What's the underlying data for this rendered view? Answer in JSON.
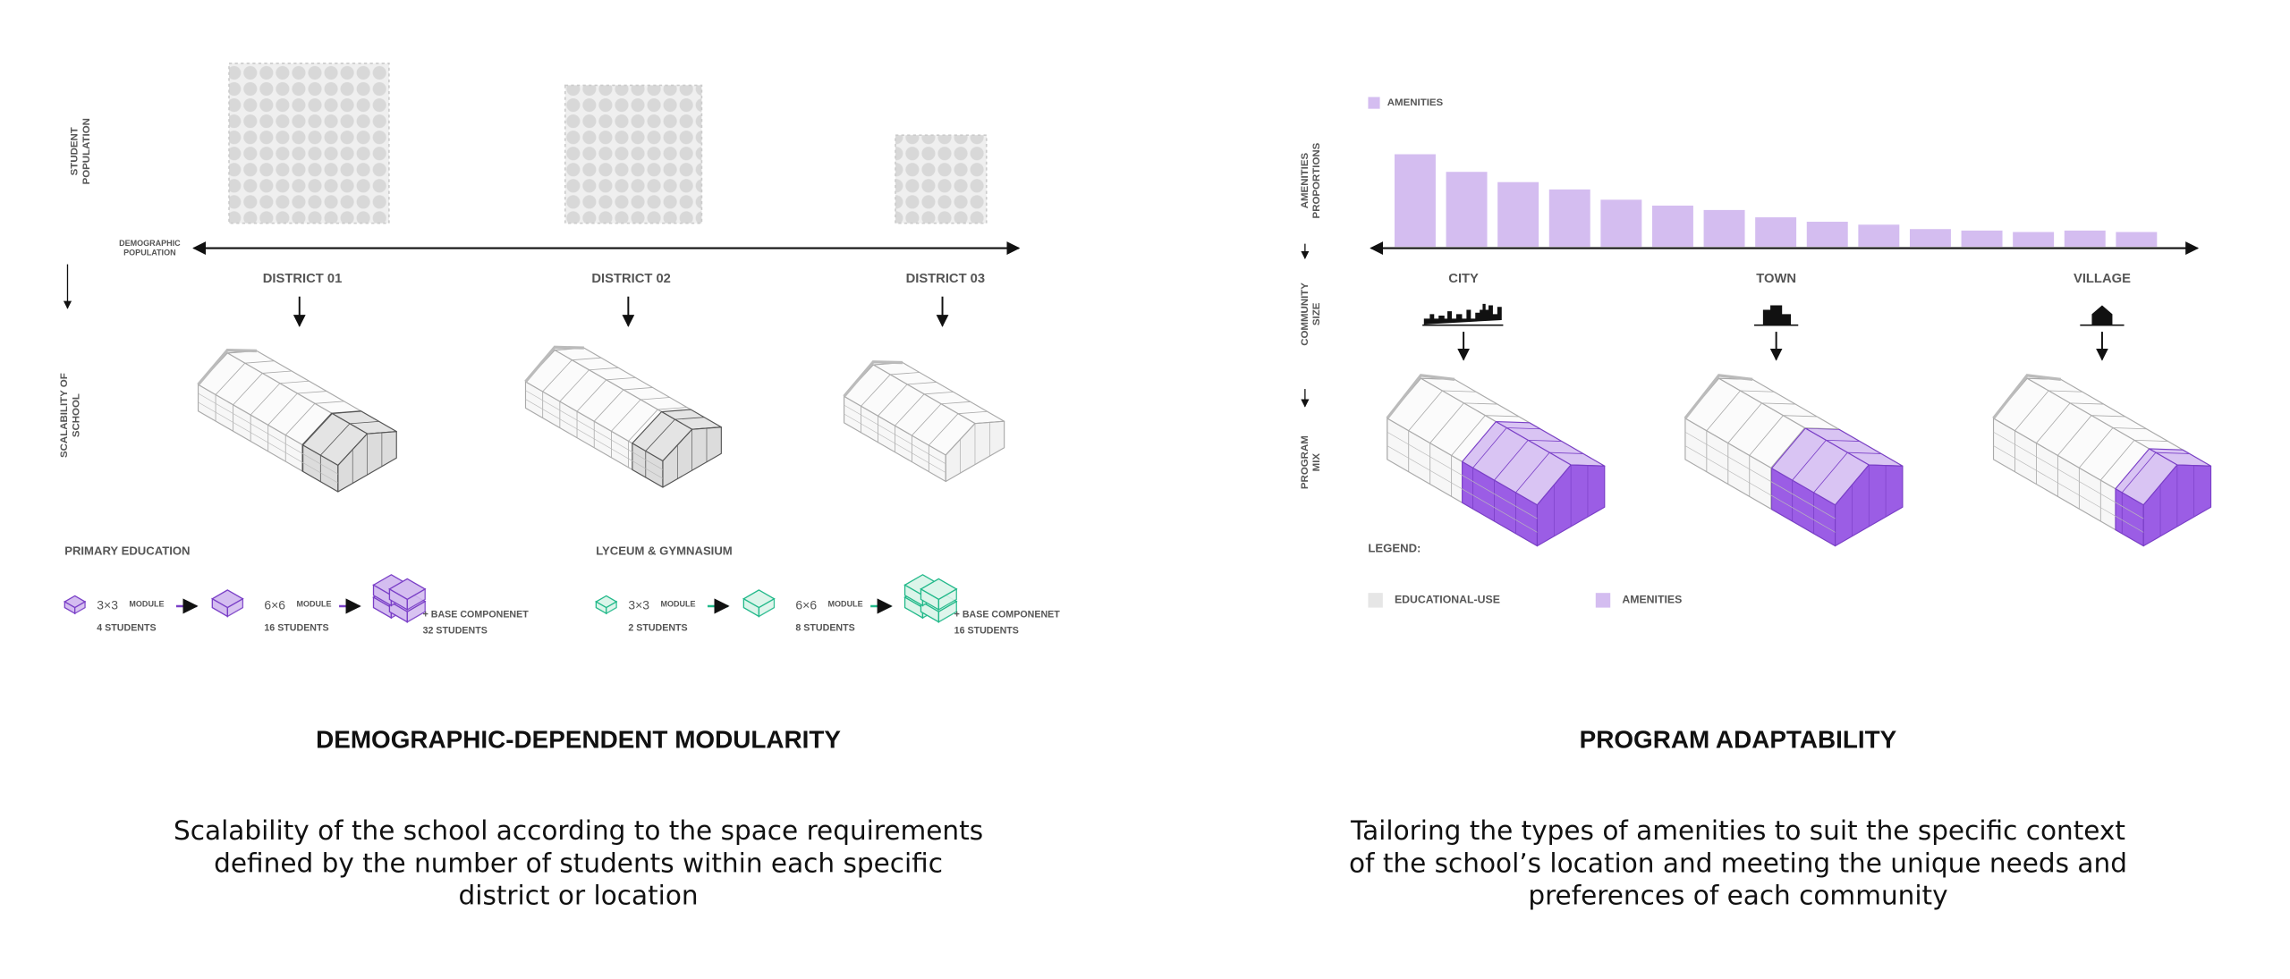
{
  "left_panel": {
    "student_population_label": [
      "STUDENT",
      "POPULATION"
    ],
    "demographic_population_label": [
      "DEMOGRAPHIC",
      "POPULATION"
    ],
    "scalability_label": [
      "SCALABILITY OF",
      "SCHOOL"
    ],
    "districts": [
      "DISTRICT 01",
      "DISTRICT 02",
      "DISTRICT 03"
    ],
    "modules": [
      {
        "title": "PRIMARY EDUCATION",
        "color": "#7a3fc7",
        "fill": "#d4bdf0",
        "steps": [
          {
            "size": "3×3",
            "unit": "MODULE",
            "students": "4 STUDENTS"
          },
          {
            "size": "6×6",
            "unit": "MODULE",
            "students": "16 STUDENTS"
          },
          {
            "extra": "+ BASE COMPONENET",
            "students": "32 STUDENTS"
          }
        ]
      },
      {
        "title": "LYCEUM & GYMNASIUM",
        "color": "#22b98a",
        "fill": "#dcf5ea",
        "steps": [
          {
            "size": "3×3",
            "unit": "MODULE",
            "students": "2 STUDENTS"
          },
          {
            "size": "6×6",
            "unit": "MODULE",
            "students": "8 STUDENTS"
          },
          {
            "extra": "+ BASE COMPONENET",
            "students": "16 STUDENTS"
          }
        ]
      }
    ],
    "heading": "DEMOGRAPHIC-DEPENDENT MODULARITY",
    "description": [
      "Scalability of the school according to the space requirements",
      "defined by the number of students within each specific",
      "district or location"
    ]
  },
  "right_panel": {
    "amenities_chart": {
      "legend": "AMENITIES",
      "axis_label": [
        "AMENITIES",
        "PROPORTIONS"
      ],
      "color": "#d4bdf0",
      "values": [
        63,
        51,
        44,
        39,
        32,
        28,
        25,
        20,
        17,
        15,
        12,
        11,
        10,
        11,
        10
      ]
    },
    "community_size_label": [
      "COMMUNITY",
      "SIZE"
    ],
    "program_mix_label": [
      "PROGRAM",
      "MIX"
    ],
    "communities": [
      "CITY",
      "TOWN",
      "VILLAGE"
    ],
    "legend": {
      "title": "LEGEND:",
      "items": [
        {
          "label": "EDUCATIONAL-USE",
          "color": "#e6e6e6"
        },
        {
          "label": "AMENITIES",
          "color": "#d4bdf0"
        }
      ]
    },
    "heading": "PROGRAM ADAPTABILITY",
    "description": [
      "Tailoring the types of amenities to suit the specific context",
      "of the school’s location and meeting the unique needs and",
      "preferences of each community"
    ]
  }
}
